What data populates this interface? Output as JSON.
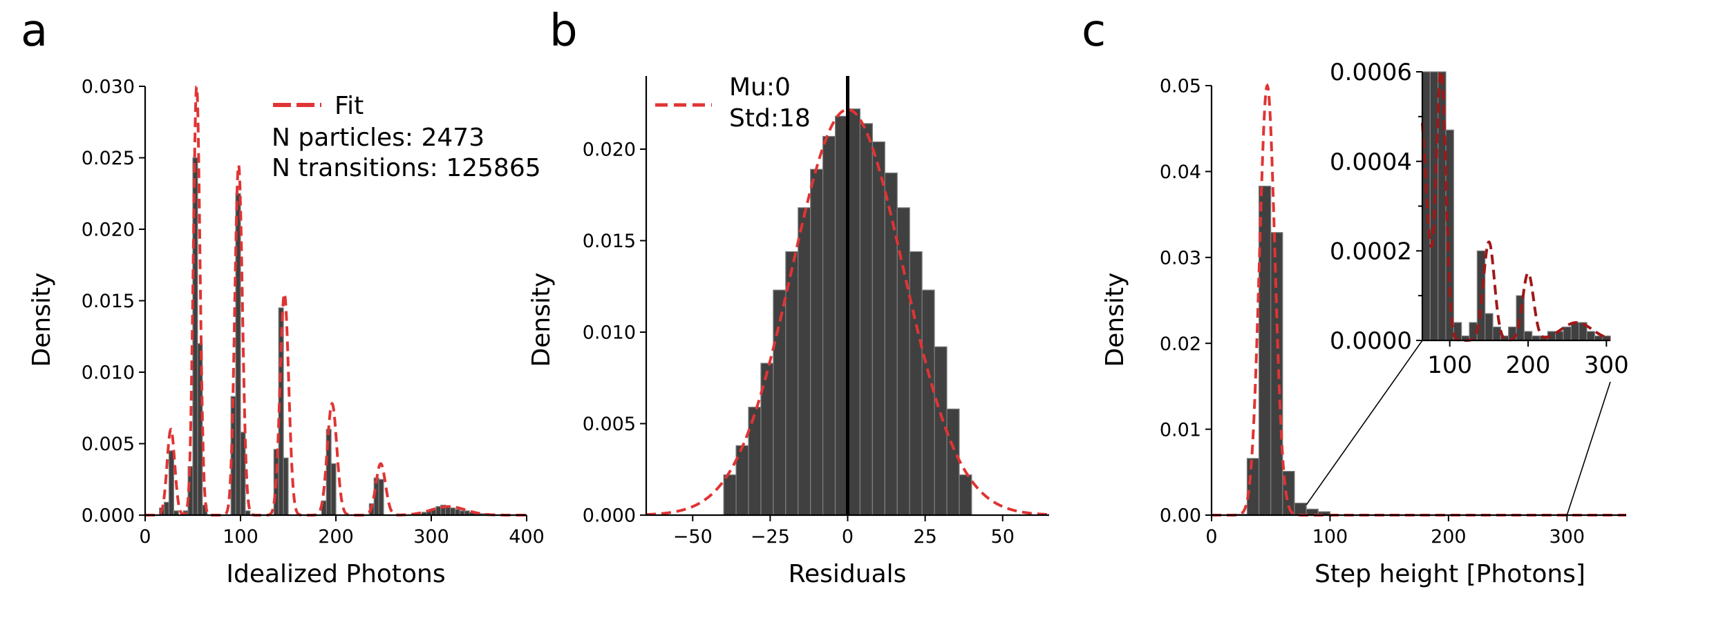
{
  "colors": {
    "bar": "#404040",
    "bar_edge": "#808080",
    "fit": "#e03434",
    "fit_dark": "#a01818"
  },
  "chart_data": [
    {
      "panel": "a",
      "type": "bar",
      "xlabel": "Idealized Photons",
      "ylabel": "Density",
      "xlim": [
        0,
        400
      ],
      "ylim": [
        0,
        0.03
      ],
      "xticks": [
        0,
        100,
        200,
        300,
        400
      ],
      "yticks": [
        0.0,
        0.005,
        0.01,
        0.015,
        0.02,
        0.025,
        0.03
      ],
      "ytick_labels": [
        "0.000",
        "0.005",
        "0.010",
        "0.015",
        "0.020",
        "0.025",
        "0.030"
      ],
      "legend": {
        "entries": [
          "Fit"
        ],
        "placement": "top-right"
      },
      "annotations": [
        "N particles: 2473",
        "N transitions: 125865"
      ],
      "bin_width": 5,
      "bins": [
        [
          15,
          0.0005
        ],
        [
          20,
          0.0009
        ],
        [
          25,
          0.0045
        ],
        [
          30,
          0.0003
        ],
        [
          40,
          0.0003
        ],
        [
          45,
          0.0034
        ],
        [
          50,
          0.025
        ],
        [
          55,
          0.012
        ],
        [
          60,
          0.0007
        ],
        [
          90,
          0.0083
        ],
        [
          95,
          0.0225
        ],
        [
          100,
          0.0058
        ],
        [
          105,
          0.0003
        ],
        [
          135,
          0.0046
        ],
        [
          140,
          0.0145
        ],
        [
          145,
          0.004
        ],
        [
          185,
          0.001
        ],
        [
          190,
          0.006
        ],
        [
          195,
          0.0036
        ],
        [
          235,
          0.0008
        ],
        [
          240,
          0.0026
        ],
        [
          245,
          0.0025
        ],
        [
          290,
          0.0002
        ],
        [
          295,
          0.0003
        ],
        [
          300,
          0.0004
        ],
        [
          305,
          0.0006
        ],
        [
          310,
          0.0007
        ],
        [
          315,
          0.0006
        ],
        [
          320,
          0.0005
        ],
        [
          325,
          0.0004
        ],
        [
          330,
          0.0003
        ],
        [
          335,
          0.0003
        ],
        [
          340,
          0.0002
        ],
        [
          345,
          0.0002
        ],
        [
          350,
          0.0001
        ],
        [
          355,
          0.0001
        ]
      ],
      "fit_peaks": [
        {
          "mu": 27,
          "sigma": 4,
          "amp": 0.006
        },
        {
          "mu": 54,
          "sigma": 3.5,
          "amp": 0.03
        },
        {
          "mu": 98,
          "sigma": 4,
          "amp": 0.0245
        },
        {
          "mu": 146,
          "sigma": 4.5,
          "amp": 0.0155
        },
        {
          "mu": 196,
          "sigma": 5,
          "amp": 0.0078
        },
        {
          "mu": 247,
          "sigma": 5,
          "amp": 0.0036
        },
        {
          "mu": 318,
          "sigma": 18,
          "amp": 0.0006
        }
      ]
    },
    {
      "panel": "b",
      "type": "bar",
      "xlabel": "Residuals",
      "ylabel": "Density",
      "xlim": [
        -65,
        65
      ],
      "ylim": [
        0,
        0.024
      ],
      "xticks": [
        -50,
        -25,
        0,
        25,
        50
      ],
      "xtick_labels": [
        "−50",
        "−25",
        "0",
        "25",
        "50"
      ],
      "yticks": [
        0.0,
        0.005,
        0.01,
        0.015,
        0.02
      ],
      "ytick_labels": [
        "0.000",
        "0.005",
        "0.010",
        "0.015",
        "0.020"
      ],
      "legend": {
        "entries": [
          "Mu:0",
          "Std:18"
        ],
        "placement": "top-left"
      },
      "bin_width": 4,
      "bins": [
        [
          -40,
          0.0022
        ],
        [
          -36,
          0.0038
        ],
        [
          -32,
          0.0059
        ],
        [
          -28,
          0.0083
        ],
        [
          -24,
          0.0123
        ],
        [
          -20,
          0.0144
        ],
        [
          -16,
          0.0168
        ],
        [
          -12,
          0.0189
        ],
        [
          -8,
          0.0207
        ],
        [
          -4,
          0.0218
        ],
        [
          0,
          0.0222
        ],
        [
          4,
          0.0214
        ],
        [
          8,
          0.0204
        ],
        [
          12,
          0.0187
        ],
        [
          16,
          0.0168
        ],
        [
          20,
          0.0144
        ],
        [
          24,
          0.0123
        ],
        [
          28,
          0.0092
        ],
        [
          32,
          0.0058
        ],
        [
          36,
          0.0022
        ]
      ],
      "fit": {
        "mu": 0,
        "sigma": 18
      },
      "vline_x": 0
    },
    {
      "panel": "c",
      "type": "bar",
      "xlabel": "Step height [Photons]",
      "ylabel": "Density",
      "xlim": [
        0,
        350
      ],
      "ylim": [
        0,
        0.05
      ],
      "xticks": [
        0,
        100,
        200,
        300
      ],
      "yticks": [
        0.0,
        0.01,
        0.02,
        0.03,
        0.04,
        0.05
      ],
      "ytick_labels": [
        "0.00",
        "0.01",
        "0.02",
        "0.03",
        "0.04",
        "0.05"
      ],
      "bin_width": 10,
      "bins": [
        [
          20,
          0.0001
        ],
        [
          30,
          0.0066
        ],
        [
          40,
          0.0383
        ],
        [
          50,
          0.0329
        ],
        [
          60,
          0.0051
        ],
        [
          70,
          0.0014
        ],
        [
          80,
          0.0007
        ],
        [
          90,
          0.0004
        ]
      ],
      "fit_peaks": [
        {
          "mu": 47,
          "sigma": 6.5,
          "amp": 0.05
        }
      ],
      "inset": {
        "xlim": [
          65,
          305
        ],
        "ylim": [
          0,
          0.0006
        ],
        "xticks": [
          100,
          200,
          300
        ],
        "yticks": [
          0.0,
          0.0002,
          0.0004,
          0.0006
        ],
        "ytick_labels": [
          "0.0000",
          "0.0002",
          "0.0004",
          "0.0006"
        ],
        "bin_width": 10,
        "bins": [
          [
            65,
            0.0006
          ],
          [
            75,
            0.0006
          ],
          [
            85,
            0.0006
          ],
          [
            95,
            0.00047
          ],
          [
            105,
            4e-05
          ],
          [
            115,
            1e-05
          ],
          [
            125,
            4e-05
          ],
          [
            135,
            0.0002
          ],
          [
            145,
            6e-05
          ],
          [
            155,
            3e-05
          ],
          [
            165,
            1e-05
          ],
          [
            175,
            3e-05
          ],
          [
            185,
            0.0001
          ],
          [
            195,
            2e-05
          ],
          [
            205,
            1e-05
          ],
          [
            215,
            1e-05
          ],
          [
            225,
            2e-05
          ],
          [
            235,
            2e-05
          ],
          [
            245,
            3e-05
          ],
          [
            255,
            4e-05
          ],
          [
            265,
            4e-05
          ],
          [
            275,
            2e-05
          ],
          [
            285,
            1e-05
          ],
          [
            295,
            1e-05
          ]
        ],
        "fit_peaks": [
          {
            "mu": 60,
            "sigma": 10,
            "amp": 0.00055
          },
          {
            "mu": 89,
            "sigma": 6,
            "amp": 0.0006
          },
          {
            "mu": 150,
            "sigma": 7,
            "amp": 0.00022
          },
          {
            "mu": 200,
            "sigma": 7,
            "amp": 0.00015
          },
          {
            "mu": 262,
            "sigma": 20,
            "amp": 4e-05
          }
        ]
      }
    }
  ]
}
